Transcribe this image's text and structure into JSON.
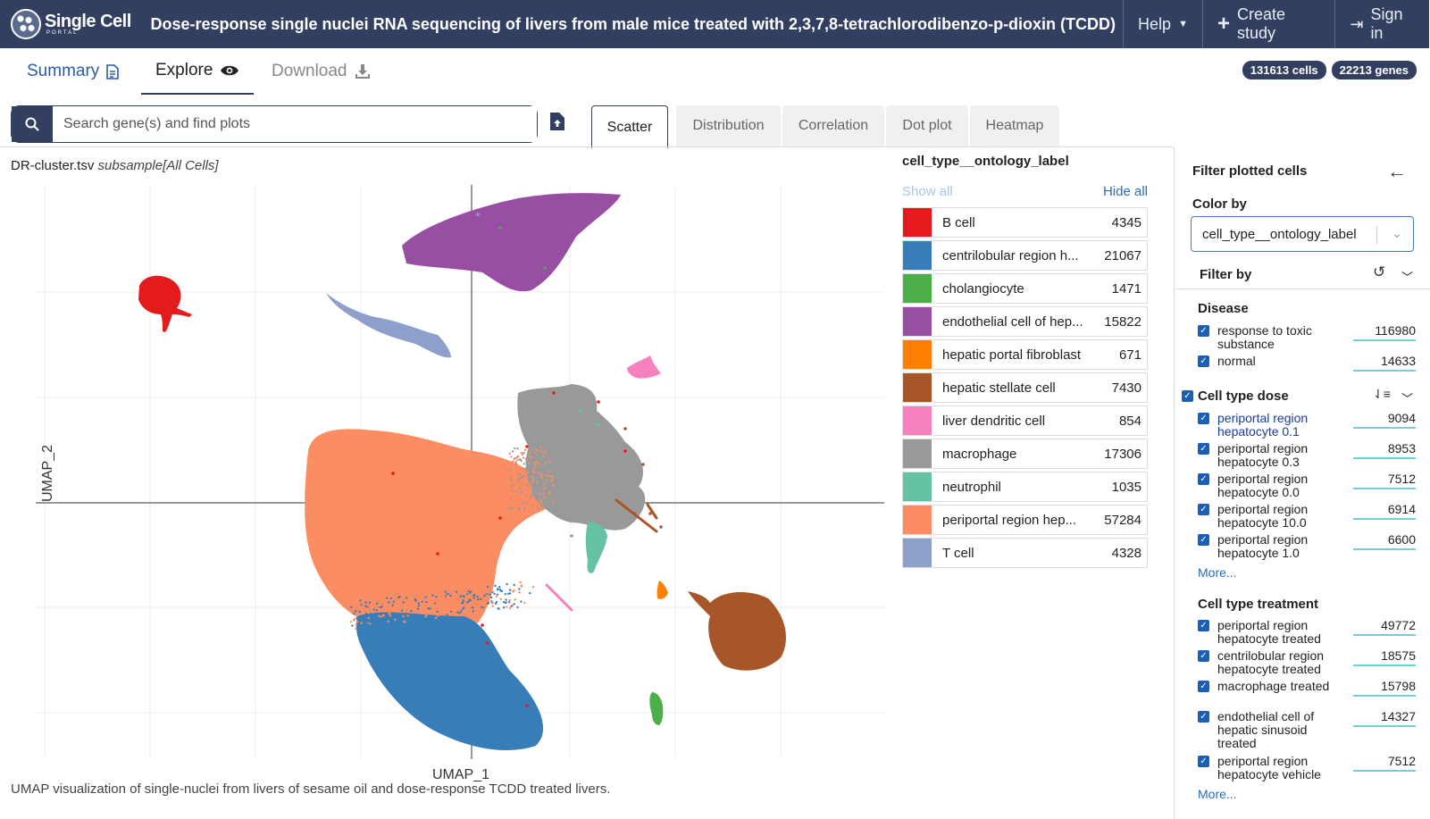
{
  "header": {
    "logo_text": "Single Cell",
    "logo_sub": "PORTAL",
    "study_title": "Dose-response single nuclei RNA sequencing of livers from male mice treated with 2,3,7,8-tetrachlorodibenzo-p-dioxin (TCDD)",
    "nav": [
      {
        "label": "Help",
        "icon": "chevron-down-icon"
      },
      {
        "label": "Create study",
        "icon": "plus-icon"
      },
      {
        "label": "Sign in",
        "icon": "sign-in-icon"
      }
    ]
  },
  "tabs": {
    "summary": "Summary",
    "explore": "Explore",
    "download": "Download"
  },
  "counts": {
    "cells": "131613 cells",
    "genes": "22213 genes"
  },
  "search": {
    "placeholder": "Search gene(s) and find plots"
  },
  "plot_tabs": [
    "Scatter",
    "Distribution",
    "Correlation",
    "Dot plot",
    "Heatmap"
  ],
  "plot": {
    "file": "DR-cluster.tsv",
    "subsample": "subsample[All Cells]",
    "xlabel": "UMAP_1",
    "ylabel": "UMAP_2",
    "caption": "UMAP visualization of single-nuclei from livers of sesame oil and dose-response TCDD treated livers."
  },
  "legend": {
    "title": "cell_type__ontology_label",
    "show_all": "Show all",
    "hide_all": "Hide all",
    "items": [
      {
        "label": "B cell",
        "count": "4345",
        "color": "#e41a1c"
      },
      {
        "label": "centrilobular region h...",
        "count": "21067",
        "color": "#377eb8"
      },
      {
        "label": "cholangiocyte",
        "count": "1471",
        "color": "#4daf4a"
      },
      {
        "label": "endothelial cell of hep...",
        "count": "15822",
        "color": "#984ea3"
      },
      {
        "label": "hepatic portal fibroblast",
        "count": "671",
        "color": "#ff7f00"
      },
      {
        "label": "hepatic stellate cell",
        "count": "7430",
        "color": "#a65628"
      },
      {
        "label": "liver dendritic cell",
        "count": "854",
        "color": "#f781bf"
      },
      {
        "label": "macrophage",
        "count": "17306",
        "color": "#999999"
      },
      {
        "label": "neutrophil",
        "count": "1035",
        "color": "#66c2a5"
      },
      {
        "label": "periportal region hep...",
        "count": "57284",
        "color": "#fc8d62"
      },
      {
        "label": "T cell",
        "count": "4328",
        "color": "#8da0cb"
      }
    ]
  },
  "filter": {
    "title": "Filter plotted cells",
    "color_by_label": "Color by",
    "color_by_value": "cell_type__ontology_label",
    "filter_by_label": "Filter by",
    "disease": {
      "title": "Disease",
      "items": [
        {
          "label": "response to toxic substance",
          "count": "116980"
        },
        {
          "label": "normal",
          "count": "14633"
        }
      ]
    },
    "dose": {
      "title": "Cell type dose",
      "items": [
        {
          "label": "periportal region hepatocyte 0.1",
          "count": "9094"
        },
        {
          "label": "periportal region hepatocyte 0.3",
          "count": "8953"
        },
        {
          "label": "periportal region hepatocyte 0.0",
          "count": "7512"
        },
        {
          "label": "periportal region hepatocyte 10.0",
          "count": "6914"
        },
        {
          "label": "periportal region hepatocyte 1.0",
          "count": "6600"
        }
      ],
      "more": "More..."
    },
    "treatment": {
      "title": "Cell type treatment",
      "items": [
        {
          "label": "periportal region hepatocyte treated",
          "count": "49772"
        },
        {
          "label": "centrilobular region hepatocyte treated",
          "count": "18575"
        },
        {
          "label": "macrophage treated",
          "count": "15798"
        },
        {
          "label": "endothelial cell of hepatic sinusoid treated",
          "count": "14327"
        },
        {
          "label": "periportal region hepatocyte vehicle",
          "count": "7512"
        }
      ],
      "more": "More..."
    }
  }
}
